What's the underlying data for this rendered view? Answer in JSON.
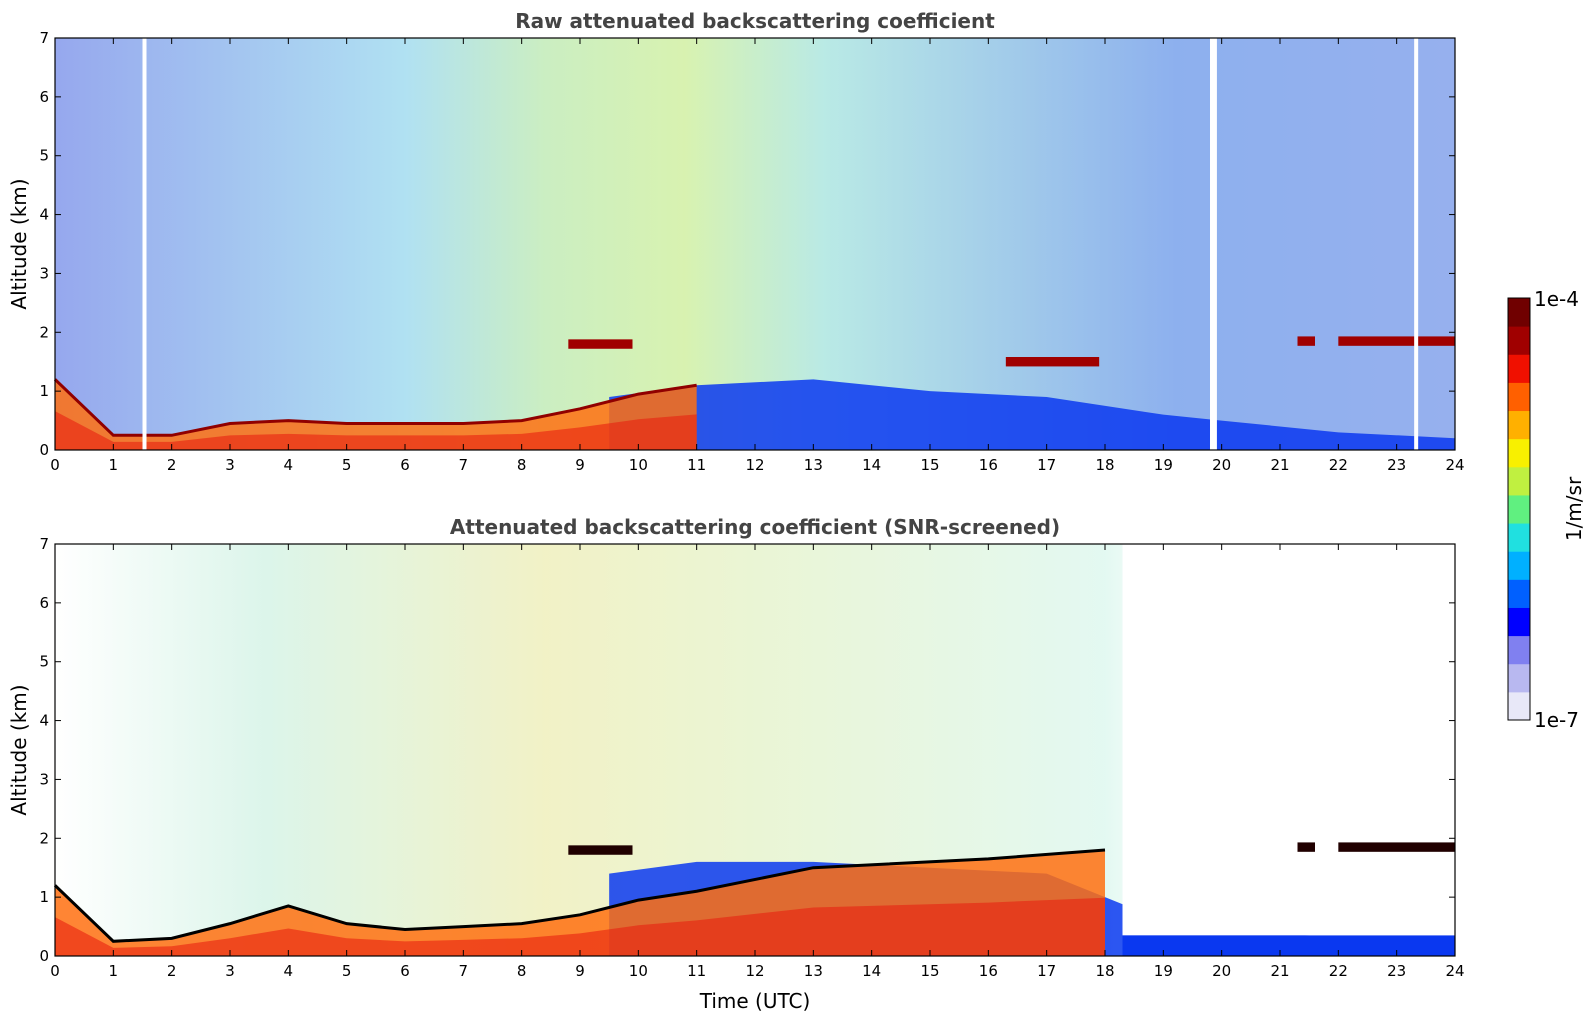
{
  "chart_data": [
    {
      "type": "heatmap",
      "title": "Raw attenuated backscattering coefficient",
      "xlabel": "",
      "ylabel": "Altitude (km)",
      "xlim": [
        0,
        24
      ],
      "ylim": [
        0,
        7
      ],
      "xticks": [
        "0",
        "1",
        "2",
        "3",
        "4",
        "5",
        "6",
        "7",
        "8",
        "9",
        "10",
        "11",
        "12",
        "13",
        "14",
        "15",
        "16",
        "17",
        "18",
        "19",
        "20",
        "21",
        "22",
        "23",
        "24"
      ],
      "yticks": [
        "0",
        "1",
        "2",
        "3",
        "4",
        "5",
        "6",
        "7"
      ],
      "boundary_layer_top_km": [
        {
          "x": 0.0,
          "y": 1.2
        },
        {
          "x": 1.0,
          "y": 0.25
        },
        {
          "x": 2.0,
          "y": 0.25
        },
        {
          "x": 3.0,
          "y": 0.45
        },
        {
          "x": 4.0,
          "y": 0.5
        },
        {
          "x": 5.0,
          "y": 0.45
        },
        {
          "x": 6.0,
          "y": 0.45
        },
        {
          "x": 7.0,
          "y": 0.45
        },
        {
          "x": 8.0,
          "y": 0.5
        },
        {
          "x": 9.0,
          "y": 0.7
        },
        {
          "x": 10.0,
          "y": 0.95
        },
        {
          "x": 11.0,
          "y": 1.1
        }
      ],
      "cloud_features": [
        {
          "x_start": 8.8,
          "x_end": 9.9,
          "y": 1.8
        },
        {
          "x_start": 21.3,
          "x_end": 21.6,
          "y": 1.85
        },
        {
          "x_start": 22.0,
          "x_end": 24.0,
          "y": 1.85
        },
        {
          "x_start": 16.3,
          "x_end": 17.9,
          "y": 1.5
        }
      ]
    },
    {
      "type": "heatmap",
      "title": "Attenuated backscattering coefficient (SNR-screened)",
      "xlabel": "Time (UTC)",
      "ylabel": "Altitude (km)",
      "xlim": [
        0,
        24
      ],
      "ylim": [
        0,
        7
      ],
      "xticks": [
        "0",
        "1",
        "2",
        "3",
        "4",
        "5",
        "6",
        "7",
        "8",
        "9",
        "10",
        "11",
        "12",
        "13",
        "14",
        "15",
        "16",
        "17",
        "18",
        "19",
        "20",
        "21",
        "22",
        "23",
        "24"
      ],
      "yticks": [
        "0",
        "1",
        "2",
        "3",
        "4",
        "5",
        "6",
        "7"
      ],
      "boundary_layer_top_km": [
        {
          "x": 0.0,
          "y": 1.2
        },
        {
          "x": 1.0,
          "y": 0.25
        },
        {
          "x": 2.0,
          "y": 0.3
        },
        {
          "x": 3.0,
          "y": 0.55
        },
        {
          "x": 4.0,
          "y": 0.85
        },
        {
          "x": 5.0,
          "y": 0.55
        },
        {
          "x": 6.0,
          "y": 0.45
        },
        {
          "x": 7.0,
          "y": 0.5
        },
        {
          "x": 8.0,
          "y": 0.55
        },
        {
          "x": 9.0,
          "y": 0.7
        },
        {
          "x": 10.0,
          "y": 0.95
        },
        {
          "x": 11.0,
          "y": 1.1
        },
        {
          "x": 13.0,
          "y": 1.5
        },
        {
          "x": 16.0,
          "y": 1.65
        },
        {
          "x": 18.0,
          "y": 1.8
        }
      ],
      "cloud_features": [
        {
          "x_start": 8.8,
          "x_end": 9.9,
          "y": 1.8
        },
        {
          "x_start": 21.3,
          "x_end": 21.6,
          "y": 1.85
        },
        {
          "x_start": 22.0,
          "x_end": 24.0,
          "y": 1.85
        }
      ]
    }
  ],
  "colorbar": {
    "label": "1/m/sr",
    "max_label": "1e-4",
    "min_label": "1e-7",
    "scale": "log",
    "colors": [
      "#e8e8f8",
      "#b8b8f0",
      "#8080f0",
      "#0000ff",
      "#0060ff",
      "#00b0ff",
      "#20e0e0",
      "#60f080",
      "#c0f040",
      "#f8f000",
      "#ffb000",
      "#ff6000",
      "#f01000",
      "#a00000",
      "#700000"
    ]
  }
}
